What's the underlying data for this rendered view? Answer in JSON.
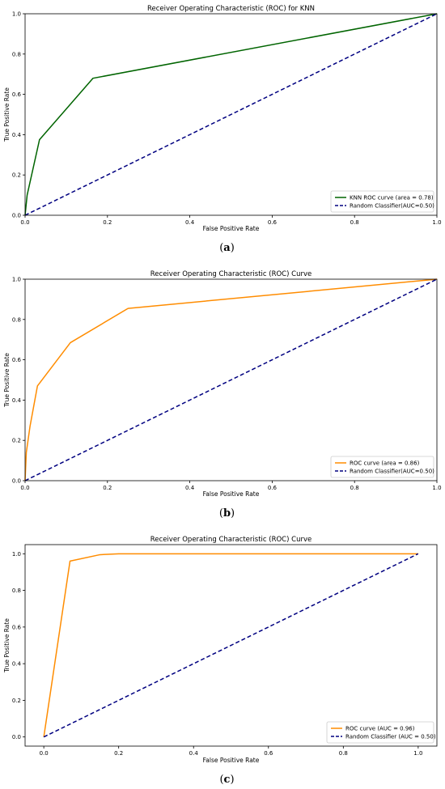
{
  "chart_data": [
    {
      "type": "line",
      "caption_letter": "a",
      "title": "Receiver Operating Characteristic (ROC) for KNN",
      "xlabel": "False Positive Rate",
      "ylabel": "True Positive Rate",
      "xlim": [
        0,
        1
      ],
      "ylim": [
        0,
        1
      ],
      "xticks": [
        "0.0",
        "0.2",
        "0.4",
        "0.6",
        "0.8",
        "1.0"
      ],
      "yticks": [
        "0.0",
        "0.2",
        "0.4",
        "0.6",
        "0.8",
        "1.0"
      ],
      "grid": false,
      "legend_position": "lower-right",
      "series": [
        {
          "name": "KNN ROC curve (area = 0.78)",
          "color": "#006400",
          "style": "solid",
          "x": [
            0.0,
            0.005,
            0.035,
            0.165,
            1.0
          ],
          "y": [
            0.0,
            0.1,
            0.375,
            0.68,
            1.0
          ]
        },
        {
          "name": "Random Classifier(AUC=0.50)",
          "color": "#000080",
          "style": "dashed",
          "x": [
            0.0,
            1.0
          ],
          "y": [
            0.0,
            1.0
          ]
        }
      ]
    },
    {
      "type": "line",
      "caption_letter": "b",
      "title": "Receiver Operating Characteristic (ROC) Curve",
      "xlabel": "False Positive Rate",
      "ylabel": "True Positive Rate",
      "xlim": [
        0,
        1
      ],
      "ylim": [
        0,
        1
      ],
      "xticks": [
        "0.0",
        "0.2",
        "0.4",
        "0.6",
        "0.8",
        "1.0"
      ],
      "yticks": [
        "0.0",
        "0.2",
        "0.4",
        "0.6",
        "0.8",
        "1.0"
      ],
      "grid": false,
      "legend_position": "lower-right",
      "series": [
        {
          "name": "ROC curve (area = 0.86)",
          "color": "#FF8C00",
          "style": "solid",
          "x": [
            0.0,
            0.003,
            0.012,
            0.03,
            0.11,
            0.25,
            1.0
          ],
          "y": [
            0.0,
            0.14,
            0.27,
            0.47,
            0.685,
            0.855,
            1.0
          ]
        },
        {
          "name": "Random Classifier(AUC=0.50)",
          "color": "#000080",
          "style": "dashed",
          "x": [
            0.0,
            1.0
          ],
          "y": [
            0.0,
            1.0
          ]
        }
      ]
    },
    {
      "type": "line",
      "caption_letter": "c",
      "title": "Receiver Operating Characteristic (ROC) Curve",
      "xlabel": "False Positive Rate",
      "ylabel": "True Positive Rate",
      "xlim": [
        -0.05,
        1.05
      ],
      "ylim": [
        -0.05,
        1.05
      ],
      "xticks": [
        "0.0",
        "0.2",
        "0.4",
        "0.6",
        "0.8",
        "1.0"
      ],
      "yticks": [
        "0.0",
        "0.2",
        "0.4",
        "0.6",
        "0.8",
        "1.0"
      ],
      "grid": false,
      "legend_position": "lower-right",
      "series": [
        {
          "name": "ROC curve (AUC = 0.96)",
          "color": "#FF8C00",
          "style": "solid",
          "x": [
            0.0,
            0.07,
            0.15,
            0.2,
            1.0
          ],
          "y": [
            0.0,
            0.96,
            0.995,
            1.0,
            1.0
          ]
        },
        {
          "name": "Random Classifier (AUC = 0.50)",
          "color": "#000080",
          "style": "dashed",
          "x": [
            0.0,
            1.0
          ],
          "y": [
            0.0,
            1.0
          ]
        }
      ]
    }
  ]
}
